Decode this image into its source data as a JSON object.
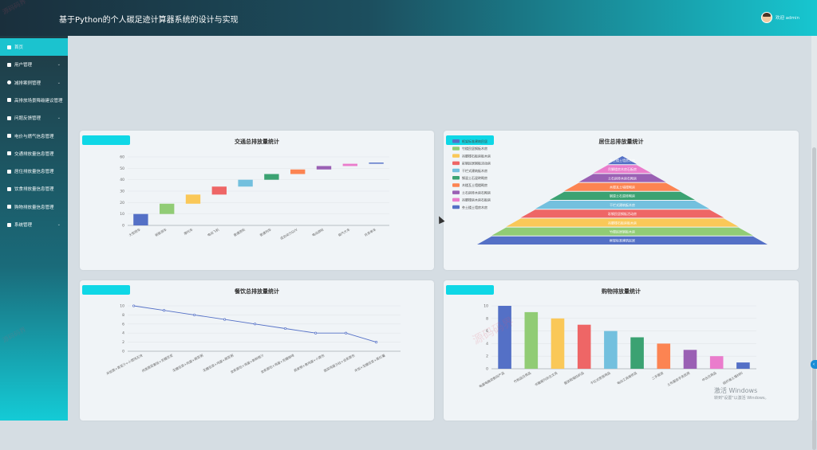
{
  "header": {
    "title": "基于Python的个人碳足迹计算器系统的设计与实现",
    "user_text": "欢迎 admin"
  },
  "sidebar": {
    "items": [
      {
        "label": "首页",
        "icon": "home-icon",
        "expandable": false
      },
      {
        "label": "用户管理",
        "icon": "user-icon",
        "expandable": true
      },
      {
        "label": "减排案例管理",
        "icon": "circle-icon",
        "expandable": true
      },
      {
        "label": "高排放场景降碳建议管理",
        "icon": "list-icon",
        "expandable": false
      },
      {
        "label": "问题反馈管理",
        "icon": "list-icon",
        "expandable": true
      },
      {
        "label": "电价与燃气信息管理",
        "icon": "list-icon",
        "expandable": false
      },
      {
        "label": "交通排放量信息管理",
        "icon": "list-icon",
        "expandable": false
      },
      {
        "label": "居住排放量信息管理",
        "icon": "list-icon",
        "expandable": false
      },
      {
        "label": "饮食排放量信息管理",
        "icon": "list-icon",
        "expandable": false
      },
      {
        "label": "购物排放量信息管理",
        "icon": "list-icon",
        "expandable": false
      },
      {
        "label": "系统管理",
        "icon": "list-icon",
        "expandable": true
      }
    ]
  },
  "colors": {
    "accent": "#1bc3cf",
    "tag": "#0fd7e6",
    "palette": [
      "#5470c6",
      "#91cc75",
      "#fac858",
      "#ee6666",
      "#73c0de",
      "#3ba272",
      "#fc8452",
      "#9a60b4",
      "#ea7ccc",
      "#5470c6"
    ]
  },
  "watermark": {
    "text": "源码码界"
  },
  "system_notice": {
    "title": "激活 Windows",
    "sub": "转到\"设置\"以激活 Windows。"
  },
  "side_button": {
    "label": "‹"
  },
  "chart_data": [
    {
      "type": "bar",
      "title": "交通总排放量统计",
      "subtype": "waterfall",
      "categories": [
        "大型轿车",
        "新能源车",
        "摩托车",
        "电动飞机",
        "普通游轮",
        "普通列车",
        "混合动力SUV",
        "电动游轮",
        "柴汽大车",
        "共享单车"
      ],
      "values": [
        10,
        9,
        8,
        7,
        6,
        5,
        4,
        3,
        2,
        1
      ],
      "ylim": [
        0,
        60
      ],
      "yticks": [
        0,
        10,
        20,
        30,
        40,
        50,
        60
      ],
      "grid": true
    },
    {
      "type": "pie",
      "subtype": "pyramid",
      "title": "居住总排放量统计",
      "categories": [
        "框架标准建筑民居",
        "竹楼民居钢板木房",
        "吊脚楼石板房板木房",
        "彩钢民居钢板活动房",
        "干栏式建筑板木房",
        "钢混土石混砖砌房",
        "木楼瓦土墙楼砌房",
        "土石房砖木房石砌房",
        "吊脚楼房木房石板房",
        "夯土楼土墙房木房"
      ],
      "values": [
        10,
        9,
        8,
        7,
        6,
        5,
        4,
        3,
        2,
        1
      ],
      "legend": "top-left"
    },
    {
      "type": "line",
      "title": "餐饮总排放量统计",
      "categories": [
        "米饭面+青菜汁+小馄饨五块",
        "肉类蔬菜套饭+无糖豆浆",
        "无糖豆浆+肉蛋+蔬菜粥",
        "无糖豆浆+鸡蛋+蔬菜粥",
        "全麦面包+鸡蛋+新鲜橙汁",
        "全麦面包+鸡蛋+无糖咖啡",
        "燕麦粥+煮鸡蛋+小面包",
        "蔬菜鸡蛋沙拉+全麦面包",
        "米饭+无糖豆浆+蒸红薯"
      ],
      "values": [
        10,
        9,
        8,
        7,
        6,
        5,
        4,
        4,
        2
      ],
      "ylim": [
        0,
        10
      ],
      "yticks": [
        0,
        2,
        4,
        6,
        8,
        10
      ],
      "grid": true
    },
    {
      "type": "bar",
      "title": "购物排放量统计",
      "categories": [
        "电器电脑类数码产品",
        "竹制品日用品",
        "书籍报刊杂志文具",
        "服装鞋帽纺织品",
        "干红式家居用品",
        "电动工具维修品",
        "二手服装",
        "土布服装手表民居",
        "中古日用品",
        "碳纤维土墙材料"
      ],
      "values": [
        10,
        9,
        8,
        7,
        6,
        5,
        4,
        3,
        2,
        1
      ],
      "ylim": [
        0,
        10
      ],
      "yticks": [
        0,
        2,
        4,
        6,
        8,
        10
      ],
      "grid": true
    }
  ]
}
